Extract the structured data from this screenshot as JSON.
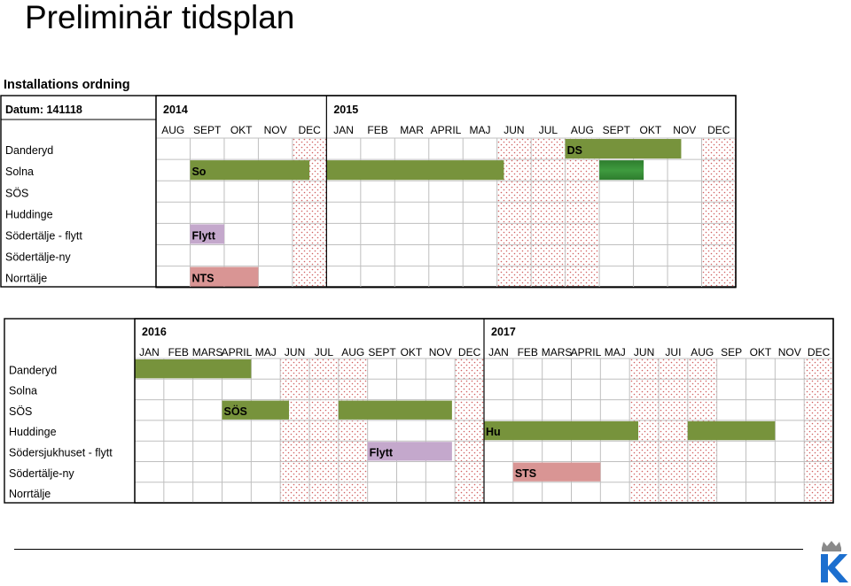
{
  "page_title": "Preliminär tidsplan",
  "subtitle": "Installations ordning",
  "colors": {
    "green": "#77933c",
    "green_gradient_light": "#3f9b3f",
    "lilac": "#c4a8cc",
    "rose": "#d99594",
    "grid": "#bfbfbf",
    "border": "#000000",
    "holiday_dots": "#d06060",
    "logo_blue": "#1c6fcf"
  },
  "logo": {
    "icon": "k-crown-logo-icon"
  },
  "chart_data": [
    {
      "type": "gantt",
      "title": "",
      "date_label": "Datum: 141118",
      "years": [
        {
          "label": "2014",
          "start_col": 0
        },
        {
          "label": "2015",
          "start_col": 5
        }
      ],
      "months": [
        "AUG",
        "SEPT",
        "OKT",
        "NOV",
        "DEC",
        "JAN",
        "FEB",
        "MAR",
        "APRIL",
        "MAJ",
        "JUN",
        "JUL",
        "AUG",
        "SEPT",
        "OKT",
        "NOV",
        "DEC"
      ],
      "rows": [
        "Danderyd",
        "Solna",
        "SÖS",
        "Huddinge",
        "Södertälje - flytt",
        "Södertälje-ny",
        "Norrtälje"
      ],
      "holiday_months": [
        4,
        10,
        11,
        12,
        16
      ],
      "bars": [
        {
          "row": 0,
          "start": 12,
          "end": 15.4,
          "color": "green",
          "label": "DS"
        },
        {
          "row": 1,
          "start": 1,
          "end": 4.5,
          "color": "green",
          "label": "So"
        },
        {
          "row": 1,
          "start": 5,
          "end": 10.2,
          "color": "green",
          "label": ""
        },
        {
          "row": 1,
          "start": 13,
          "end": 14.3,
          "color": "green_gradient",
          "label": ""
        },
        {
          "row": 4,
          "start": 1,
          "end": 2,
          "color": "lilac",
          "label": "Flytt"
        },
        {
          "row": 6,
          "start": 1,
          "end": 3,
          "color": "rose",
          "label": "NTS"
        }
      ]
    },
    {
      "type": "gantt",
      "title": "",
      "years": [
        {
          "label": "2016",
          "start_col": 0
        },
        {
          "label": "2017",
          "start_col": 12
        }
      ],
      "months": [
        "JAN",
        "FEB",
        "MARS",
        "APRIL",
        "MAJ",
        "JUN",
        "JUL",
        "AUG",
        "SEPT",
        "OKT",
        "NOV",
        "DEC",
        "JAN",
        "FEB",
        "MARS",
        "APRIL",
        "MAJ",
        "JUN",
        "JUI",
        "AUG",
        "SEP",
        "OKT",
        "NOV",
        "DEC"
      ],
      "rows": [
        "Danderyd",
        "Solna",
        "SÖS",
        "Huddinge",
        "Södersjukhuset - flytt",
        "Södertälje-ny",
        "Norrtälje"
      ],
      "holiday_months": [
        5,
        6,
        7,
        11,
        17,
        18,
        19,
        23
      ],
      "bars": [
        {
          "row": 0,
          "start": 0,
          "end": 4,
          "color": "green",
          "label": ""
        },
        {
          "row": 2,
          "start": 3,
          "end": 5.3,
          "color": "green",
          "label": "SÖS"
        },
        {
          "row": 2,
          "start": 7,
          "end": 10.9,
          "color": "green",
          "label": ""
        },
        {
          "row": 3,
          "start": 12,
          "end": 17.3,
          "color": "green",
          "label": "Hu"
        },
        {
          "row": 3,
          "start": 19,
          "end": 22,
          "color": "green",
          "label": ""
        },
        {
          "row": 4,
          "start": 8,
          "end": 10.9,
          "color": "lilac",
          "label": "Flytt"
        },
        {
          "row": 5,
          "start": 13,
          "end": 16,
          "color": "rose",
          "label": "STS"
        }
      ]
    }
  ]
}
